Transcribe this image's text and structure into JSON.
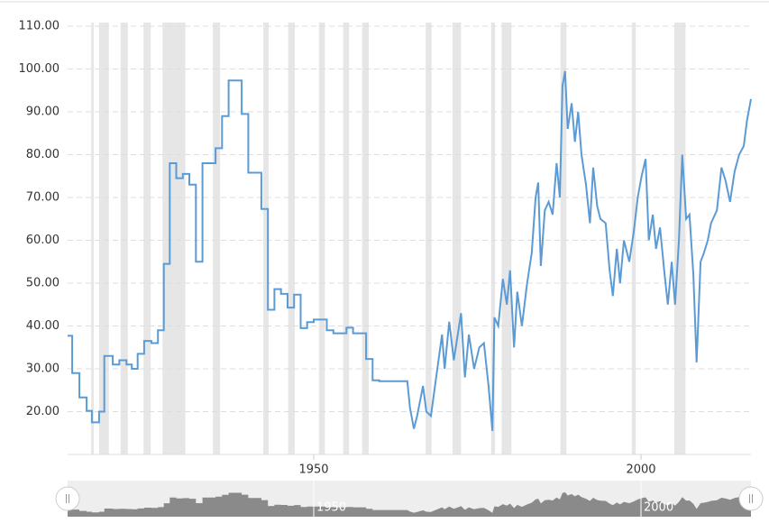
{
  "chart_data": {
    "type": "line",
    "x": [
      1912.4,
      1913.1,
      1913.1,
      1914.2,
      1914.2,
      1915.3,
      1915.3,
      1916.1,
      1916.1,
      1917.2,
      1917.2,
      1918.0,
      1918.0,
      1919.3,
      1919.3,
      1920.3,
      1920.3,
      1921.4,
      1921.4,
      1922.2,
      1922.2,
      1923.1,
      1923.1,
      1924.1,
      1924.1,
      1925.2,
      1925.2,
      1926.2,
      1926.2,
      1927.1,
      1927.1,
      1928.0,
      1928.0,
      1929.0,
      1929.0,
      1930.0,
      1930.0,
      1931.0,
      1931.0,
      1932.0,
      1932.0,
      1933.0,
      1933.0,
      1935.0,
      1935.0,
      1936.0,
      1936.0,
      1937.0,
      1937.0,
      1939.0,
      1939.0,
      1940.0,
      1940.0,
      1942.0,
      1942.0,
      1943.0,
      1943.0,
      1944.0,
      1944.0,
      1945.0,
      1945.0,
      1946.0,
      1946.0,
      1947.0,
      1947.0,
      1948.0,
      1948.0,
      1949.0,
      1949.0,
      1950.0,
      1950.0,
      1952.0,
      1952.0,
      1953.0,
      1953.0,
      1955.0,
      1955.0,
      1956.0,
      1956.0,
      1958.0,
      1958.0,
      1959.0,
      1959.0,
      1960.0,
      1960.0,
      1964.3,
      1964.7,
      1965.3,
      1965.8,
      1966.7,
      1967.2,
      1967.9,
      1968.7,
      1969.6,
      1970.0,
      1970.7,
      1971.4,
      1972.5,
      1973.1,
      1973.7,
      1974.5,
      1975.3,
      1976.0,
      1976.7,
      1977.3,
      1977.6,
      1978.2,
      1978.9,
      1979.5,
      1980.0,
      1980.6,
      1981.1,
      1981.8,
      1982.6,
      1983.3,
      1983.9,
      1984.3,
      1984.7,
      1985.3,
      1985.9,
      1986.5,
      1987.1,
      1987.6,
      1988.0,
      1988.4,
      1988.8,
      1989.4,
      1989.9,
      1990.4,
      1990.9,
      1991.6,
      1992.2,
      1992.7,
      1993.3,
      1993.8,
      1994.6,
      1995.2,
      1995.7,
      1996.3,
      1996.8,
      1997.4,
      1998.2,
      1998.9,
      1999.5,
      2000.1,
      2000.7,
      2001.2,
      2001.8,
      2002.3,
      2002.9,
      2003.6,
      2004.1,
      2004.7,
      2005.2,
      2005.8,
      2006.3,
      2006.9,
      2007.4,
      2008.0,
      2008.5,
      2009.1,
      2009.6,
      2010.2,
      2010.7,
      2011.6,
      2012.3,
      2012.9,
      2013.6,
      2014.3,
      2015.0,
      2015.7,
      2016.2,
      2016.8
    ],
    "values": [
      37.7,
      37.7,
      29,
      29,
      23.3,
      23.3,
      20.2,
      20.2,
      17.5,
      17.5,
      20,
      20,
      33,
      33,
      31,
      31,
      32,
      32,
      31,
      31,
      30,
      30,
      33.5,
      33.5,
      36.5,
      36.5,
      36,
      36,
      39,
      39,
      54.5,
      54.5,
      78,
      78,
      74.5,
      74.5,
      75.5,
      75.5,
      73,
      73,
      55,
      55,
      78,
      78,
      81.5,
      81.5,
      89,
      89,
      97.3,
      97.3,
      89.5,
      89.5,
      75.8,
      75.8,
      67.3,
      67.3,
      43.8,
      43.8,
      48.6,
      48.6,
      47.5,
      47.5,
      44.3,
      44.3,
      47.3,
      47.3,
      39.5,
      39.5,
      40.9,
      40.9,
      41.5,
      41.5,
      39,
      39,
      38.3,
      38.3,
      39.6,
      39.6,
      38.3,
      38.3,
      32.3,
      32.3,
      27.3,
      27.3,
      27.1,
      27.1,
      21,
      16,
      19,
      26,
      20,
      19,
      28,
      38,
      30,
      41,
      32,
      43,
      28,
      38,
      30,
      35,
      36,
      26,
      15.5,
      42,
      40,
      51,
      45,
      53,
      35,
      48,
      40,
      50,
      57,
      70,
      73.5,
      54,
      67,
      69,
      66,
      78,
      70,
      96,
      99.5,
      86,
      92,
      83,
      90,
      80,
      73,
      64,
      77,
      68,
      65,
      64,
      53,
      47,
      58,
      50,
      60,
      55,
      62,
      70,
      75,
      79,
      60,
      66,
      58,
      63,
      52,
      45,
      55,
      45,
      60,
      80,
      65,
      66,
      52,
      31.5,
      55,
      57,
      60,
      64,
      67,
      77,
      74,
      69,
      76,
      80,
      82,
      88,
      93
    ],
    "color": "#5b9bd5",
    "shaded_periods": [
      [
        1916.0,
        1916.4
      ],
      [
        1917.2,
        1918.7
      ],
      [
        1920.5,
        1921.6
      ],
      [
        1924.0,
        1925.1
      ],
      [
        1926.9,
        1930.4
      ],
      [
        1934.6,
        1935.7
      ],
      [
        1942.3,
        1943.1
      ],
      [
        1946.1,
        1947.1
      ],
      [
        1950.8,
        1951.7
      ],
      [
        1954.5,
        1955.4
      ],
      [
        1957.4,
        1958.4
      ],
      [
        1967.1,
        1968.0
      ],
      [
        1971.2,
        1972.5
      ],
      [
        1977.1,
        1977.7
      ],
      [
        1978.7,
        1980.2
      ],
      [
        1987.7,
        1988.6
      ],
      [
        1998.6,
        1999.2
      ],
      [
        2005.1,
        2006.8
      ]
    ],
    "xlim": [
      1912.4,
      2016.8
    ],
    "xticks": [
      1950,
      2000
    ],
    "ylim": [
      10,
      110
    ],
    "yticks": [
      {
        "value": 20,
        "label": "20.00"
      },
      {
        "value": 30,
        "label": "30.00"
      },
      {
        "value": 40,
        "label": "40.00"
      },
      {
        "value": 50,
        "label": "50.00"
      },
      {
        "value": 60,
        "label": "60.00"
      },
      {
        "value": 70,
        "label": "70.00"
      },
      {
        "value": 80,
        "label": "80.00"
      },
      {
        "value": 90,
        "label": "90.00"
      },
      {
        "value": 100,
        "label": "100.00"
      },
      {
        "value": 110,
        "label": "110.00"
      }
    ],
    "grid": true
  }
}
